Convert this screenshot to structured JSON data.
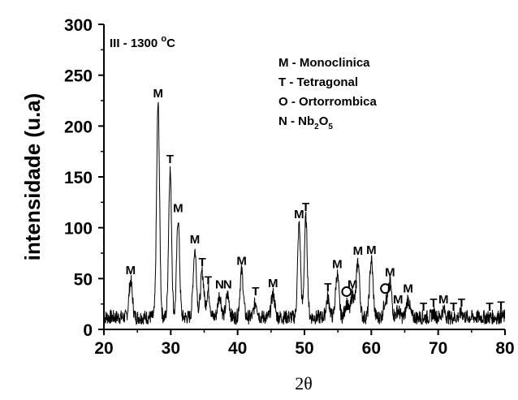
{
  "chart_data": {
    "type": "line",
    "title": "III - 1300 °C",
    "title_parts": {
      "prefix": "III - 1300 ",
      "degree": "o",
      "unit": "C"
    },
    "xlabel": "2θ",
    "ylabel": "intensidade (u.a)",
    "xlim": [
      20,
      80
    ],
    "ylim": [
      0,
      300
    ],
    "xticks": [
      20,
      30,
      40,
      50,
      60,
      70,
      80
    ],
    "yticks": [
      0,
      50,
      100,
      150,
      200,
      250,
      300
    ],
    "grid": false,
    "legend_position": "top-right",
    "legend": [
      {
        "key": "M",
        "text": "M - Monoclinica"
      },
      {
        "key": "T",
        "text": "T - Tetragonal"
      },
      {
        "key": "O",
        "text": "O - Ortorrombica"
      },
      {
        "key": "N",
        "text": "N - Nb",
        "sub1": "2",
        "mid": "O",
        "sub2": "5"
      }
    ],
    "peaks": [
      {
        "x": 24.0,
        "y": 48,
        "label": "M"
      },
      {
        "x": 28.1,
        "y": 222,
        "label": "M"
      },
      {
        "x": 29.9,
        "y": 157,
        "label": "T"
      },
      {
        "x": 31.1,
        "y": 109,
        "label": "M"
      },
      {
        "x": 33.6,
        "y": 78,
        "label": "M"
      },
      {
        "x": 34.7,
        "y": 56,
        "label": "T"
      },
      {
        "x": 35.6,
        "y": 38,
        "label": "T"
      },
      {
        "x": 37.3,
        "y": 34,
        "label": "N"
      },
      {
        "x": 38.5,
        "y": 34,
        "label": "N"
      },
      {
        "x": 40.6,
        "y": 57,
        "label": "M"
      },
      {
        "x": 42.7,
        "y": 27,
        "label": "T"
      },
      {
        "x": 45.3,
        "y": 35,
        "label": "M"
      },
      {
        "x": 49.2,
        "y": 103,
        "label": "M"
      },
      {
        "x": 50.2,
        "y": 110,
        "label": "T"
      },
      {
        "x": 53.5,
        "y": 31,
        "label": "T"
      },
      {
        "x": 54.9,
        "y": 54,
        "label": "M"
      },
      {
        "x": 56.3,
        "y": 26,
        "label": "O"
      },
      {
        "x": 57.2,
        "y": 34,
        "label": "M"
      },
      {
        "x": 58.0,
        "y": 67,
        "label": "M"
      },
      {
        "x": 60.0,
        "y": 68,
        "label": "M"
      },
      {
        "x": 62.1,
        "y": 29,
        "label": "O"
      },
      {
        "x": 62.8,
        "y": 46,
        "label": "M"
      },
      {
        "x": 64.0,
        "y": 19,
        "label": "M"
      },
      {
        "x": 65.5,
        "y": 30,
        "label": "M"
      },
      {
        "x": 67.8,
        "y": 12,
        "label": "T"
      },
      {
        "x": 69.3,
        "y": 16,
        "label": "T"
      },
      {
        "x": 70.8,
        "y": 19,
        "label": "M"
      },
      {
        "x": 72.3,
        "y": 12,
        "label": "T"
      },
      {
        "x": 73.5,
        "y": 16,
        "label": "T"
      },
      {
        "x": 77.7,
        "y": 12,
        "label": "T"
      },
      {
        "x": 79.4,
        "y": 13,
        "label": "T"
      }
    ],
    "baseline": 12,
    "noise": 9
  }
}
